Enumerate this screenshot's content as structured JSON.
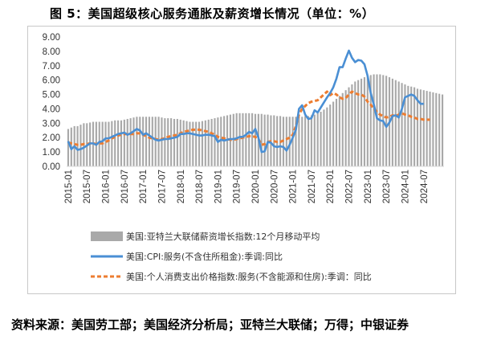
{
  "figure": {
    "title": "图 5：美国超级核心服务通胀及薪资增长情况（单位：%）",
    "source": "资料来源：美国劳工部；美国经济分析局；亚特兰大联储；万得；中银证券"
  },
  "colors": {
    "bar": "#a9a9a9",
    "cpi_line": "#4a8fd4",
    "pce_line": "#ed7d31",
    "axis": "#d9d9d9",
    "text": "#333333"
  },
  "chart_data": {
    "type": "bar+line",
    "start": "2015-01",
    "ylim": [
      0,
      9
    ],
    "yticks": [
      "0.00",
      "1.00",
      "2.00",
      "3.00",
      "4.00",
      "5.00",
      "6.00",
      "7.00",
      "8.00",
      "9.00"
    ],
    "xticks": [
      "2015-01",
      "2015-07",
      "2016-01",
      "2016-07",
      "2017-01",
      "2017-07",
      "2018-01",
      "2018-07",
      "2019-01",
      "2019-07",
      "2020-01",
      "2020-07",
      "2021-01",
      "2021-07",
      "2022-01",
      "2022-07",
      "2023-01",
      "2023-07",
      "2024-01",
      "2024-07"
    ],
    "series": [
      {
        "name": "美国:亚特兰大联储薪资增长指数:12个月移动平均",
        "kind": "bar",
        "values": [
          2.6,
          2.7,
          2.8,
          2.8,
          2.9,
          3.0,
          3.0,
          3.05,
          3.1,
          3.1,
          3.1,
          3.1,
          3.1,
          3.1,
          3.15,
          3.2,
          3.2,
          3.2,
          3.25,
          3.3,
          3.35,
          3.4,
          3.45,
          3.45,
          3.45,
          3.45,
          3.45,
          3.45,
          3.45,
          3.45,
          3.4,
          3.35,
          3.35,
          3.35,
          3.3,
          3.3,
          3.25,
          3.2,
          3.15,
          3.1,
          3.1,
          3.1,
          3.1,
          3.15,
          3.2,
          3.25,
          3.3,
          3.35,
          3.4,
          3.45,
          3.5,
          3.55,
          3.6,
          3.65,
          3.7,
          3.7,
          3.7,
          3.7,
          3.7,
          3.7,
          3.65,
          3.65,
          3.65,
          3.6,
          3.6,
          3.55,
          3.55,
          3.5,
          3.5,
          3.45,
          3.45,
          3.45,
          3.45,
          3.45,
          3.45,
          3.45,
          3.5,
          3.5,
          3.55,
          3.6,
          3.7,
          3.8,
          3.95,
          4.1,
          4.3,
          4.5,
          4.7,
          4.9,
          5.1,
          5.3,
          5.5,
          5.7,
          5.9,
          6.0,
          6.1,
          6.2,
          6.3,
          6.35,
          6.4,
          6.4,
          6.4,
          6.35,
          6.3,
          6.2,
          6.1,
          6.0,
          5.9,
          5.8,
          5.7,
          5.6,
          5.55,
          5.5,
          5.4,
          5.35,
          5.3,
          5.25,
          5.2,
          5.15,
          5.1,
          5.05,
          5.0
        ]
      },
      {
        "name": "美国:CPI:服务(不含住所租金):季调:同比",
        "kind": "line",
        "values": [
          1.75,
          1.2,
          1.4,
          1.15,
          1.2,
          1.3,
          1.45,
          1.6,
          1.6,
          1.5,
          1.7,
          1.75,
          1.95,
          1.95,
          2.05,
          2.15,
          2.25,
          2.3,
          2.35,
          2.2,
          2.3,
          2.45,
          2.6,
          2.5,
          2.2,
          2.3,
          2.15,
          2.0,
          1.85,
          1.8,
          1.85,
          1.9,
          1.9,
          1.95,
          2.0,
          2.05,
          2.25,
          2.25,
          2.3,
          2.3,
          2.25,
          2.2,
          2.15,
          2.15,
          2.2,
          2.2,
          2.15,
          2.1,
          1.7,
          1.85,
          1.8,
          1.85,
          1.9,
          1.9,
          1.95,
          2.05,
          2.05,
          2.2,
          2.4,
          2.3,
          2.6,
          2.0,
          1.0,
          1.05,
          1.7,
          1.65,
          1.4,
          1.35,
          1.4,
          1.35,
          1.1,
          1.5,
          2.0,
          2.55,
          4.0,
          4.25,
          3.6,
          3.3,
          3.35,
          3.9,
          3.75,
          4.1,
          4.45,
          4.8,
          5.1,
          5.5,
          6.1,
          6.9,
          6.9,
          7.5,
          8.05,
          7.55,
          7.25,
          7.4,
          7.35,
          7.1,
          6.3,
          5.1,
          4.3,
          3.35,
          3.2,
          3.15,
          2.75,
          3.05,
          3.5,
          3.55,
          3.4,
          4.0,
          4.8,
          4.9,
          5.0,
          4.9,
          4.6,
          4.35,
          4.35
        ]
      },
      {
        "name": "美国:个人消费支出价格指数:服务(不含能源和住房):季调：同比",
        "kind": "line",
        "values": [
          1.65,
          1.6,
          1.55,
          1.5,
          1.5,
          1.55,
          1.55,
          1.6,
          1.6,
          1.55,
          1.6,
          1.6,
          1.7,
          1.8,
          1.95,
          2.05,
          2.15,
          2.2,
          2.25,
          2.25,
          2.25,
          2.25,
          2.3,
          2.3,
          2.2,
          2.1,
          2.0,
          1.95,
          1.9,
          1.85,
          1.9,
          1.95,
          2.05,
          2.1,
          2.15,
          2.2,
          2.3,
          2.4,
          2.45,
          2.5,
          2.55,
          2.55,
          2.55,
          2.5,
          2.45,
          2.4,
          2.3,
          2.2,
          2.05,
          2.0,
          1.95,
          1.9,
          1.85,
          1.85,
          1.9,
          1.95,
          2.0,
          2.05,
          2.1,
          2.1,
          2.05,
          1.9,
          1.5,
          1.55,
          1.7,
          1.75,
          1.75,
          1.7,
          1.7,
          1.8,
          1.9,
          2.0,
          2.2,
          2.8,
          3.6,
          4.0,
          4.2,
          4.4,
          4.5,
          4.55,
          4.6,
          4.8,
          5.0,
          5.2,
          4.95,
          5.1,
          5.0,
          4.8,
          4.7,
          4.75,
          5.0,
          5.2,
          5.1,
          5.0,
          5.0,
          4.85,
          4.5,
          4.3,
          4.0,
          3.8,
          3.6,
          3.5,
          3.4,
          3.45,
          3.55,
          3.5,
          3.6,
          3.7,
          3.6,
          3.55,
          3.45,
          3.4,
          3.3,
          3.3,
          3.25,
          3.25,
          3.25
        ]
      }
    ]
  }
}
